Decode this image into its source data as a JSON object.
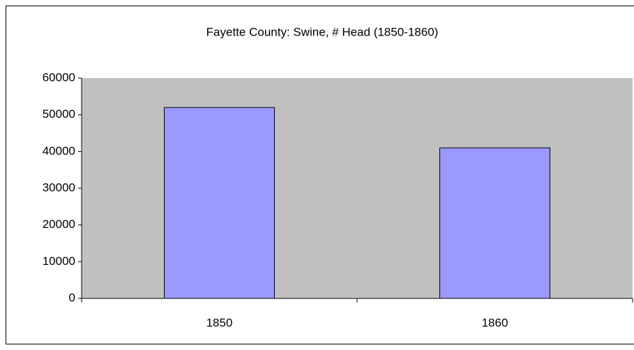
{
  "chart_data": {
    "type": "bar",
    "title": "Fayette County: Swine, # Head (1850-1860)",
    "categories": [
      "1850",
      "1860"
    ],
    "values": [
      52000,
      41000
    ],
    "color": "#9999ff",
    "ylim": [
      0,
      60000
    ],
    "yticks": [
      0,
      10000,
      20000,
      30000,
      40000,
      50000,
      60000
    ],
    "grid": false
  }
}
